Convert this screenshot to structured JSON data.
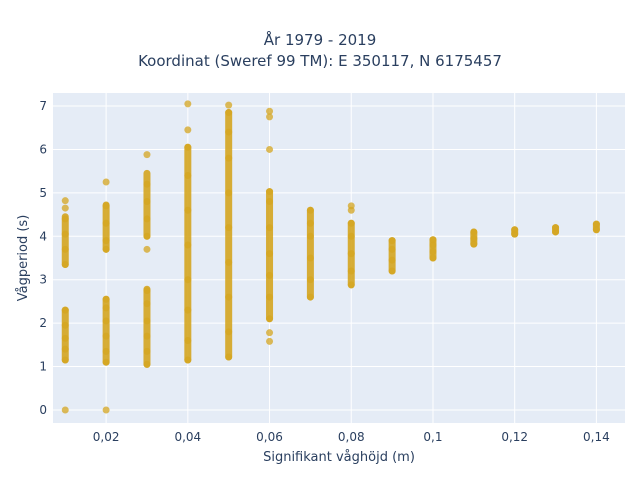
{
  "chart_data": {
    "type": "scatter",
    "title_line1": "År 1979 - 2019",
    "title_line2": "Koordinat (Sweref 99 TM): E 350117, N 6175457",
    "xlabel": "Signifikant våghöjd (m)",
    "ylabel": "Vågperiod (s)",
    "xlim": [
      0.007,
      0.147
    ],
    "ylim": [
      -0.3,
      7.3
    ],
    "xticks": [
      0.02,
      0.04,
      0.06,
      0.08,
      0.1,
      0.12,
      0.14
    ],
    "xtick_labels": [
      "0,02",
      "0,04",
      "0,06",
      "0,08",
      "0,1",
      "0,12",
      "0,14"
    ],
    "yticks": [
      0,
      1,
      2,
      3,
      4,
      5,
      6,
      7
    ],
    "ytick_labels": [
      "0",
      "1",
      "2",
      "3",
      "4",
      "5",
      "6",
      "7"
    ],
    "grid": true,
    "background_color": "#e5ecf6",
    "marker_color": "#d4a520",
    "series": [
      {
        "x": [
          0.01,
          0.01,
          0.01,
          0.01,
          0.01,
          0.01,
          0.01,
          0.01,
          0.01,
          0.01,
          0.01,
          0.01,
          0.02,
          0.02,
          0.02,
          0.02,
          0.02,
          0.02,
          0.02,
          0.02,
          0.02,
          0.02,
          0.02,
          0.02,
          0.03,
          0.03,
          0.03,
          0.03,
          0.03,
          0.03,
          0.03,
          0.03,
          0.03,
          0.03,
          0.03,
          0.03,
          0.04,
          0.04,
          0.04,
          0.04,
          0.04,
          0.04,
          0.04,
          0.04,
          0.04,
          0.04,
          0.05,
          0.05,
          0.05,
          0.05,
          0.05,
          0.05,
          0.05,
          0.05,
          0.05,
          0.05,
          0.06,
          0.06,
          0.06,
          0.06,
          0.06,
          0.06,
          0.06,
          0.06,
          0.06,
          0.06,
          0.06,
          0.06,
          0.07,
          0.07,
          0.07,
          0.07,
          0.07,
          0.07,
          0.08,
          0.08,
          0.08,
          0.08,
          0.08,
          0.08,
          0.08,
          0.09,
          0.09,
          0.09,
          0.09,
          0.1,
          0.1,
          0.1,
          0.1,
          0.11,
          0.11,
          0.11,
          0.12,
          0.12,
          0.13,
          0.13,
          0.14,
          0.14
        ],
        "y": [
          0.0,
          1.15,
          1.4,
          1.65,
          1.95,
          2.3,
          3.35,
          3.7,
          4.05,
          4.4,
          4.65,
          4.82,
          0.0,
          1.1,
          1.35,
          1.7,
          2.05,
          2.35,
          2.55,
          3.7,
          3.9,
          4.3,
          4.7,
          5.25,
          1.05,
          1.35,
          1.7,
          2.05,
          2.45,
          2.75,
          3.7,
          4.0,
          4.4,
          4.8,
          5.2,
          5.88,
          1.15,
          1.6,
          2.3,
          3.0,
          3.8,
          4.6,
          5.4,
          6.05,
          6.45,
          7.05,
          1.22,
          1.8,
          2.6,
          3.4,
          4.2,
          5.0,
          5.8,
          6.4,
          6.85,
          7.02,
          1.58,
          1.78,
          2.1,
          2.6,
          3.1,
          3.6,
          4.2,
          4.8,
          5.03,
          6.0,
          6.75,
          6.88,
          2.6,
          3.0,
          3.5,
          4.0,
          4.3,
          4.6,
          2.88,
          3.2,
          3.6,
          4.0,
          4.3,
          4.6,
          4.7,
          3.2,
          3.45,
          3.7,
          3.9,
          3.5,
          3.65,
          3.8,
          3.92,
          3.82,
          3.95,
          4.1,
          4.05,
          4.15,
          4.1,
          4.2,
          4.15,
          4.28
        ]
      }
    ],
    "columns": [
      {
        "x": 0.01,
        "segments": [
          [
            1.15,
            2.3
          ],
          [
            3.35,
            4.45
          ]
        ]
      },
      {
        "x": 0.02,
        "segments": [
          [
            1.1,
            2.55
          ],
          [
            3.7,
            4.72
          ]
        ]
      },
      {
        "x": 0.03,
        "segments": [
          [
            1.05,
            2.78
          ],
          [
            4.0,
            5.45
          ]
        ]
      },
      {
        "x": 0.04,
        "segments": [
          [
            1.15,
            6.05
          ]
        ]
      },
      {
        "x": 0.05,
        "segments": [
          [
            1.22,
            6.85
          ]
        ]
      },
      {
        "x": 0.06,
        "segments": [
          [
            2.1,
            5.03
          ]
        ]
      },
      {
        "x": 0.07,
        "segments": [
          [
            2.6,
            4.6
          ]
        ]
      },
      {
        "x": 0.08,
        "segments": [
          [
            2.88,
            4.3
          ]
        ]
      },
      {
        "x": 0.09,
        "segments": [
          [
            3.2,
            3.9
          ]
        ]
      },
      {
        "x": 0.1,
        "segments": [
          [
            3.5,
            3.92
          ]
        ]
      },
      {
        "x": 0.11,
        "segments": [
          [
            3.82,
            4.1
          ]
        ]
      },
      {
        "x": 0.12,
        "segments": [
          [
            4.05,
            4.15
          ]
        ]
      },
      {
        "x": 0.13,
        "segments": [
          [
            4.1,
            4.2
          ]
        ]
      },
      {
        "x": 0.14,
        "segments": [
          [
            4.15,
            4.28
          ]
        ]
      }
    ]
  }
}
